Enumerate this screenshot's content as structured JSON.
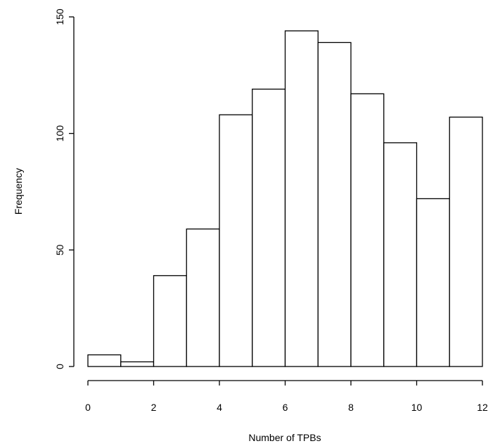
{
  "chart_data": {
    "type": "bar",
    "title": "",
    "xlabel": "Number of TPBs",
    "ylabel": "Frequency",
    "bins": [
      [
        0,
        1
      ],
      [
        1,
        2
      ],
      [
        2,
        3
      ],
      [
        3,
        4
      ],
      [
        4,
        5
      ],
      [
        5,
        6
      ],
      [
        6,
        7
      ],
      [
        7,
        8
      ],
      [
        8,
        9
      ],
      [
        9,
        10
      ],
      [
        10,
        11
      ],
      [
        11,
        12
      ]
    ],
    "values": [
      5,
      2,
      39,
      59,
      108,
      119,
      144,
      139,
      117,
      96,
      72,
      107
    ],
    "xlim": [
      0,
      12
    ],
    "ylim": [
      0,
      150
    ],
    "x_ticks": [
      0,
      2,
      4,
      6,
      8,
      10,
      12
    ],
    "y_ticks": [
      0,
      50,
      100,
      150
    ],
    "grid": false,
    "legend": "none"
  }
}
